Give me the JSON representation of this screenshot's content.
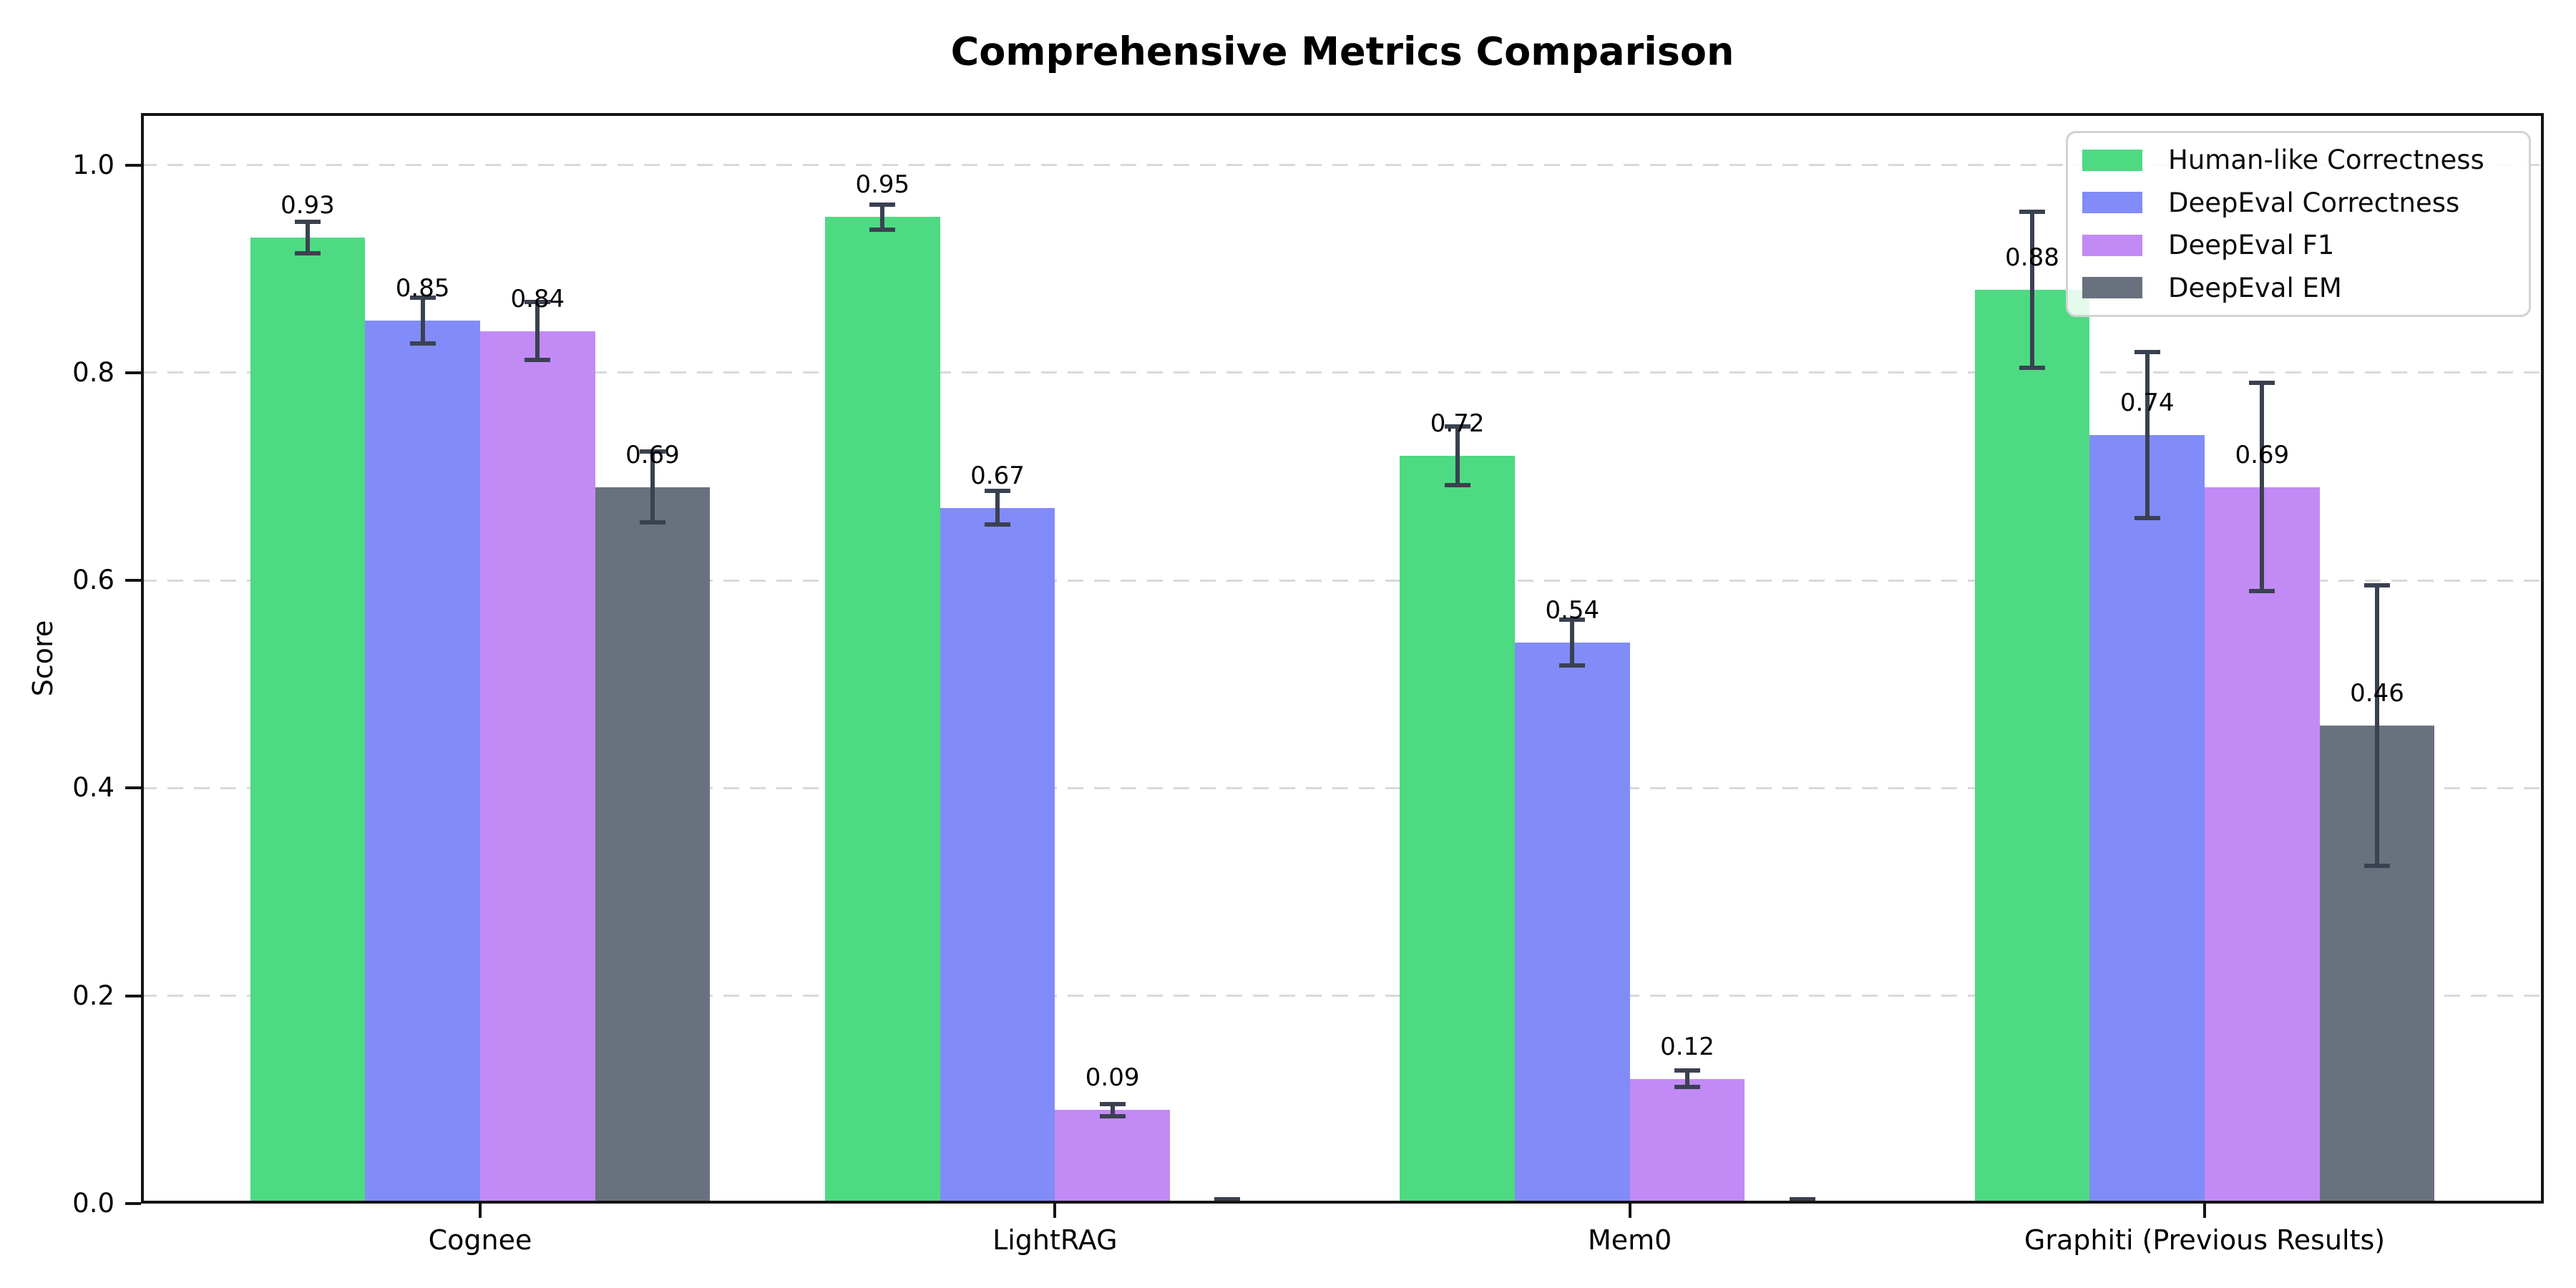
{
  "title": "Comprehensive Metrics Comparison",
  "chart_data": {
    "type": "bar",
    "title": "Comprehensive Metrics Comparison",
    "categories": [
      "Cognee",
      "LightRAG",
      "Mem0",
      "Graphiti (Previous Results)"
    ],
    "series": [
      {
        "name": "Human-like Correctness",
        "color": "#4dda82",
        "values": [
          0.93,
          0.95,
          0.72,
          0.88
        ],
        "errors": [
          0.015,
          0.012,
          0.028,
          0.075
        ],
        "labels": [
          "0.93",
          "0.95",
          "0.72",
          "0.88"
        ]
      },
      {
        "name": "DeepEval Correctness",
        "color": "#818cf8",
        "values": [
          0.85,
          0.67,
          0.54,
          0.74
        ],
        "errors": [
          0.022,
          0.016,
          0.022,
          0.08
        ],
        "labels": [
          "0.85",
          "0.67",
          "0.54",
          "0.74"
        ]
      },
      {
        "name": "DeepEval F1",
        "color": "#c28af5",
        "values": [
          0.84,
          0.09,
          0.12,
          0.69
        ],
        "errors": [
          0.028,
          0.006,
          0.008,
          0.1
        ],
        "labels": [
          "0.84",
          "0.09",
          "0.12",
          "0.69"
        ]
      },
      {
        "name": "DeepEval EM",
        "color": "#6a717e",
        "values": [
          0.69,
          0.0,
          0.0,
          0.46
        ],
        "errors": [
          0.034,
          0.004,
          0.004,
          0.135
        ],
        "labels": [
          "0.69",
          "",
          "",
          "0.46"
        ]
      }
    ],
    "xlabel": "",
    "ylabel": "Score",
    "yticks": [
      0.0,
      0.2,
      0.4,
      0.6,
      0.8,
      1.0
    ],
    "ytick_labels": [
      "0.0",
      "0.2",
      "0.4",
      "0.6",
      "0.8",
      "1.0"
    ],
    "ylim": [
      0,
      1.05
    ],
    "grid": "horizontal-dashed",
    "legend_position": "upper right",
    "errorbar_color": "#3a4150"
  }
}
